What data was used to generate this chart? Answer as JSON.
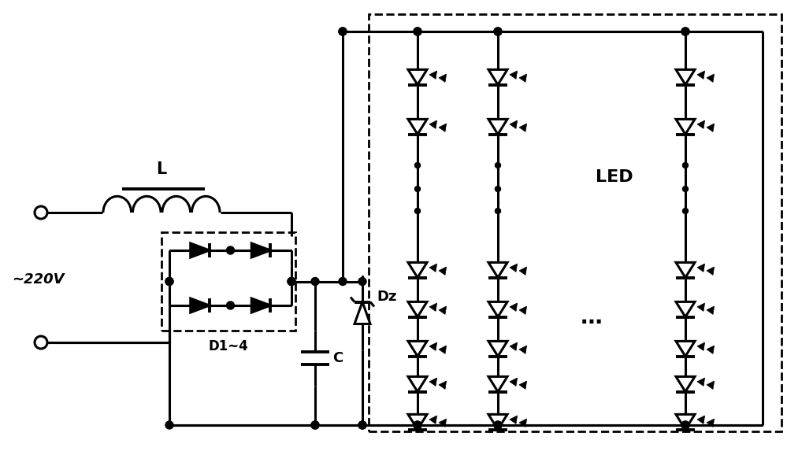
{
  "bg_color": "#ffffff",
  "line_color": "#000000",
  "lw": 2.2,
  "lw_thin": 1.5,
  "lw_thick": 2.8,
  "dashed_lw": 2.0,
  "dot_r": 5,
  "small_dot_r": 3.5,
  "ac_label": "~220V",
  "L_label": "L",
  "D_label": "D1~4",
  "C_label": "C",
  "Dz_label": "Dz",
  "LED_label": "LED"
}
